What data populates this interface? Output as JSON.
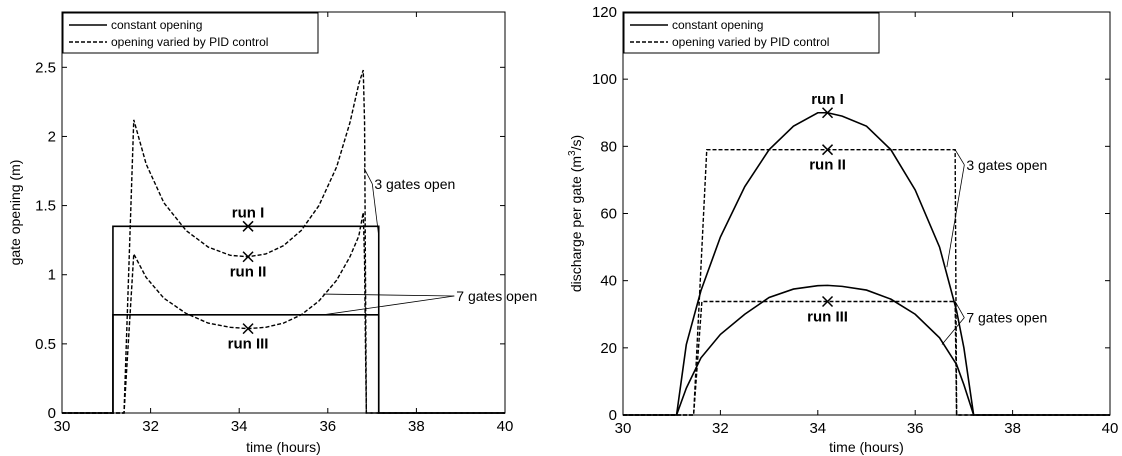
{
  "chart_data": [
    {
      "type": "line",
      "xlabel": "time (hours)",
      "ylabel": "gate opening (m)",
      "xlim": [
        30,
        40
      ],
      "ylim": [
        0,
        2.9
      ],
      "xticks": [
        30,
        32,
        34,
        36,
        38,
        40
      ],
      "yticks": [
        0,
        0.5,
        1,
        1.5,
        2,
        2.5
      ],
      "ytick_labels": [
        "0",
        "0.5",
        "1",
        "1.5",
        "2",
        "2.5"
      ],
      "legend": {
        "placement": "top-left",
        "entries": [
          {
            "label": "constant opening",
            "style": "solid"
          },
          {
            "label": "opening varied by PID control",
            "style": "dashed"
          }
        ]
      },
      "series": [
        {
          "style": "solid",
          "x": [
            30,
            31.15,
            31.15,
            37.15,
            37.15,
            40
          ],
          "y": [
            0,
            0,
            1.35,
            1.35,
            0,
            0
          ]
        },
        {
          "style": "solid",
          "x": [
            30,
            31.15,
            31.15,
            37.15,
            37.15,
            40
          ],
          "y": [
            0,
            0,
            0.71,
            0.71,
            0,
            0
          ]
        },
        {
          "style": "dashed",
          "x": [
            30,
            31.4,
            31.62,
            31.9,
            32.3,
            32.8,
            33.3,
            33.8,
            34.2,
            34.6,
            35.0,
            35.4,
            35.8,
            36.2,
            36.5,
            36.7,
            36.8,
            36.83,
            36.85,
            36.87,
            40
          ],
          "y": [
            0,
            0,
            2.12,
            1.8,
            1.52,
            1.32,
            1.2,
            1.14,
            1.13,
            1.15,
            1.21,
            1.32,
            1.5,
            1.78,
            2.1,
            2.38,
            2.48,
            2.1,
            1.0,
            0,
            0
          ]
        },
        {
          "style": "dashed",
          "x": [
            30,
            31.4,
            31.62,
            31.9,
            32.3,
            32.8,
            33.3,
            33.8,
            34.2,
            34.6,
            35.0,
            35.4,
            35.8,
            36.2,
            36.5,
            36.7,
            36.8,
            36.83,
            36.85,
            36.87,
            40
          ],
          "y": [
            0,
            0,
            1.15,
            0.98,
            0.83,
            0.72,
            0.65,
            0.62,
            0.61,
            0.62,
            0.65,
            0.71,
            0.81,
            0.96,
            1.13,
            1.28,
            1.45,
            1.1,
            0.5,
            0,
            0
          ]
        }
      ],
      "markers": [
        {
          "label": "run I",
          "x": 34.2,
          "y": 1.35,
          "label_pos": "above"
        },
        {
          "label": "run II",
          "x": 34.2,
          "y": 1.13,
          "label_pos": "below"
        },
        {
          "label": "run III",
          "x": 34.2,
          "y": 0.61,
          "label_pos": "below"
        }
      ],
      "annotations": [
        {
          "text": "3 gates open",
          "x": 37.05,
          "y": 1.62,
          "targets": [
            [
              36.82,
              1.77
            ],
            [
              37.15,
              1.28
            ]
          ]
        },
        {
          "text": "7 gates open",
          "x": 38.9,
          "y": 0.81,
          "targets": [
            [
              35.9,
              0.86
            ],
            [
              35.9,
              0.71
            ]
          ]
        }
      ]
    },
    {
      "type": "line",
      "xlabel": "time (hours)",
      "ylabel": "discharge per gate (m",
      "ylabel_sup": "3",
      "ylabel_tail": "/s)",
      "xlim": [
        30,
        40
      ],
      "ylim": [
        0,
        120
      ],
      "xticks": [
        30,
        32,
        34,
        36,
        38,
        40
      ],
      "yticks": [
        0,
        20,
        40,
        60,
        80,
        100,
        120
      ],
      "ytick_labels": [
        "0",
        "20",
        "40",
        "60",
        "80",
        "100",
        "120"
      ],
      "legend": {
        "placement": "top-left",
        "entries": [
          {
            "label": "constant opening",
            "style": "solid"
          },
          {
            "label": "opening varied by PID control",
            "style": "dashed"
          }
        ]
      },
      "series": [
        {
          "style": "solid",
          "x": [
            30,
            31.1,
            31.3,
            31.6,
            32.0,
            32.5,
            33.0,
            33.5,
            34.0,
            34.2,
            34.5,
            35.0,
            35.5,
            36.0,
            36.5,
            36.85,
            37.0,
            37.2,
            40
          ],
          "y": [
            0,
            0,
            21,
            37,
            53,
            68,
            79,
            86,
            90,
            90,
            89,
            86,
            79,
            67,
            50,
            31,
            20,
            0,
            0
          ]
        },
        {
          "style": "solid",
          "x": [
            30,
            31.1,
            31.3,
            31.6,
            32.0,
            32.5,
            33.0,
            33.5,
            34.0,
            34.2,
            34.5,
            35.0,
            35.5,
            36.0,
            36.5,
            36.85,
            37.0,
            37.2,
            40
          ],
          "y": [
            0,
            0,
            8,
            17,
            24,
            30,
            35,
            37.5,
            38.5,
            38.6,
            38.3,
            37.2,
            34.5,
            30,
            23,
            15,
            9,
            0,
            0
          ]
        },
        {
          "style": "dashed",
          "x": [
            30,
            31.45,
            31.72,
            36.82,
            36.85,
            40
          ],
          "y": [
            0,
            0,
            79,
            79,
            0,
            0
          ]
        },
        {
          "style": "dashed",
          "x": [
            30,
            31.45,
            31.62,
            36.82,
            36.85,
            40
          ],
          "y": [
            0,
            0,
            33.8,
            33.8,
            0,
            0
          ]
        }
      ],
      "markers": [
        {
          "label": "run I",
          "x": 34.2,
          "y": 90,
          "label_pos": "above"
        },
        {
          "label": "run II",
          "x": 34.2,
          "y": 79,
          "label_pos": "below"
        },
        {
          "label": "run III",
          "x": 34.2,
          "y": 33.8,
          "label_pos": "below"
        }
      ],
      "annotations": [
        {
          "text": "3 gates open",
          "x": 37.05,
          "y": 73,
          "targets": [
            [
              36.82,
              79
            ],
            [
              36.65,
              44
            ]
          ]
        },
        {
          "text": "7 gates open",
          "x": 37.05,
          "y": 27.5,
          "targets": [
            [
              36.82,
              33.8
            ],
            [
              36.55,
              21
            ]
          ]
        }
      ]
    }
  ]
}
